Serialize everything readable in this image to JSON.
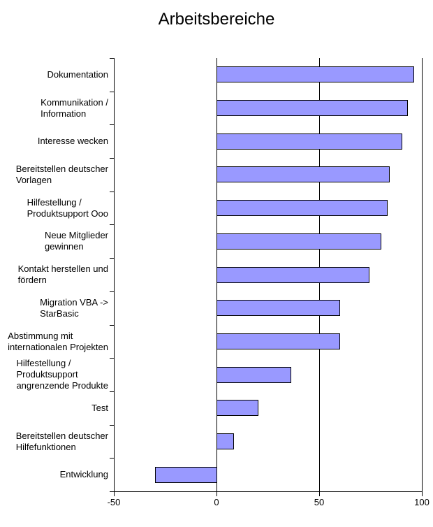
{
  "chart_data": {
    "type": "bar",
    "orientation": "horizontal",
    "title": "Arbeitsbereiche",
    "categories": [
      "Dokumentation",
      "Kommunikation /\nInformation",
      "Interesse wecken",
      "Bereitstellen deutscher\nVorlagen",
      "Hilfestellung /\nProduktsupport Ooo",
      "Neue Mitglieder\ngewinnen",
      "Kontakt herstellen und\nfördern",
      "Migration VBA ->\nStarBasic",
      "Abstimmung mit\ninternationalen Projekten",
      "Hilfestellung /\nProduktsupport\nangrenzende Produkte",
      "Test",
      "Bereitstellen deutscher\nHilfefunktionen",
      "Entwicklung"
    ],
    "values": [
      96,
      93,
      90,
      84,
      83,
      80,
      74,
      60,
      60,
      36,
      20,
      8,
      -30
    ],
    "xlabel": "",
    "ylabel": "",
    "xlim": [
      -50,
      100
    ],
    "xticks": [
      -50,
      0,
      50,
      100
    ],
    "gridlines_at": [
      0,
      50,
      100
    ],
    "grid": "vertical-only",
    "legend": "none",
    "bar_color": "#9999FF",
    "bar_border_color": "#000000",
    "axis_color": "#000000",
    "text_color": "#000000",
    "background_color": "#FFFFFF"
  }
}
